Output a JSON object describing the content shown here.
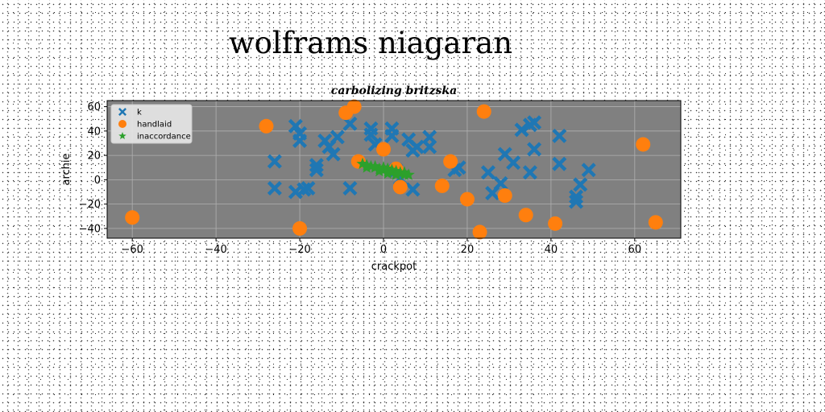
{
  "figure": {
    "suptitle": "wolframs niagaran"
  },
  "chart_data": {
    "type": "scatter",
    "title": "carbolizing britzska",
    "xlabel": "crackpot",
    "ylabel": "archie",
    "xlim": [
      -66,
      71
    ],
    "ylim": [
      -48,
      65
    ],
    "xticks": [
      -60,
      -40,
      -20,
      0,
      20,
      40,
      60
    ],
    "yticks": [
      -40,
      -20,
      0,
      20,
      40,
      60
    ],
    "grid": true,
    "legend_position": "upper-left",
    "plot_background": "#808080",
    "series": [
      {
        "name": "k",
        "marker": "x-filled",
        "color": "#1f77b4",
        "points": [
          [
            -26,
            15
          ],
          [
            -26,
            -7
          ],
          [
            -21,
            -10
          ],
          [
            -21,
            44
          ],
          [
            -20,
            38
          ],
          [
            -20,
            32
          ],
          [
            -19,
            -8
          ],
          [
            -18,
            -7
          ],
          [
            -16,
            8
          ],
          [
            -16,
            12
          ],
          [
            -14,
            32
          ],
          [
            -13,
            27
          ],
          [
            -12,
            21
          ],
          [
            -11,
            35
          ],
          [
            -8,
            -7
          ],
          [
            -8,
            46
          ],
          [
            -3,
            42
          ],
          [
            -3,
            37
          ],
          [
            -2,
            29
          ],
          [
            2,
            42
          ],
          [
            2,
            36
          ],
          [
            3,
            8
          ],
          [
            4,
            1
          ],
          [
            6,
            33
          ],
          [
            7,
            24
          ],
          [
            8,
            27
          ],
          [
            7,
            -8
          ],
          [
            11,
            27
          ],
          [
            11,
            35
          ],
          [
            17,
            8
          ],
          [
            18,
            10
          ],
          [
            25,
            6
          ],
          [
            26,
            -11
          ],
          [
            28,
            -3
          ],
          [
            29,
            21
          ],
          [
            31,
            14
          ],
          [
            33,
            41
          ],
          [
            35,
            6
          ],
          [
            35,
            45
          ],
          [
            36,
            47
          ],
          [
            36,
            25
          ],
          [
            42,
            13
          ],
          [
            42,
            36
          ],
          [
            46,
            -14
          ],
          [
            46,
            -18
          ],
          [
            47,
            -4
          ],
          [
            49,
            8
          ]
        ]
      },
      {
        "name": "handlaid",
        "marker": "circle",
        "color": "#ff7f0e",
        "points": [
          [
            -60,
            -31
          ],
          [
            -28,
            44
          ],
          [
            -20,
            -40
          ],
          [
            -9,
            55
          ],
          [
            -7,
            60
          ],
          [
            -6,
            15
          ],
          [
            0,
            25
          ],
          [
            3,
            9
          ],
          [
            4,
            -6
          ],
          [
            14,
            -5
          ],
          [
            16,
            15
          ],
          [
            20,
            -16
          ],
          [
            23,
            -43
          ],
          [
            24,
            56
          ],
          [
            29,
            -13
          ],
          [
            34,
            -29
          ],
          [
            41,
            -36
          ],
          [
            62,
            29
          ],
          [
            65,
            -35
          ]
        ]
      },
      {
        "name": "inaccordance",
        "marker": "star",
        "color": "#2ca02c",
        "points": [
          [
            -5,
            13
          ],
          [
            -4,
            12
          ],
          [
            -3,
            11
          ],
          [
            -2,
            10
          ],
          [
            -1,
            9
          ],
          [
            0,
            8
          ],
          [
            1,
            7
          ],
          [
            2,
            6
          ],
          [
            3,
            5
          ],
          [
            4,
            5
          ],
          [
            5,
            4
          ],
          [
            6,
            4
          ],
          [
            -4,
            10
          ],
          [
            -2,
            11
          ],
          [
            0,
            10
          ],
          [
            1,
            9
          ],
          [
            2,
            8
          ],
          [
            3,
            7
          ],
          [
            4,
            6
          ],
          [
            5,
            6
          ],
          [
            -1,
            7
          ],
          [
            1,
            5
          ],
          [
            3,
            4
          ]
        ]
      }
    ]
  }
}
